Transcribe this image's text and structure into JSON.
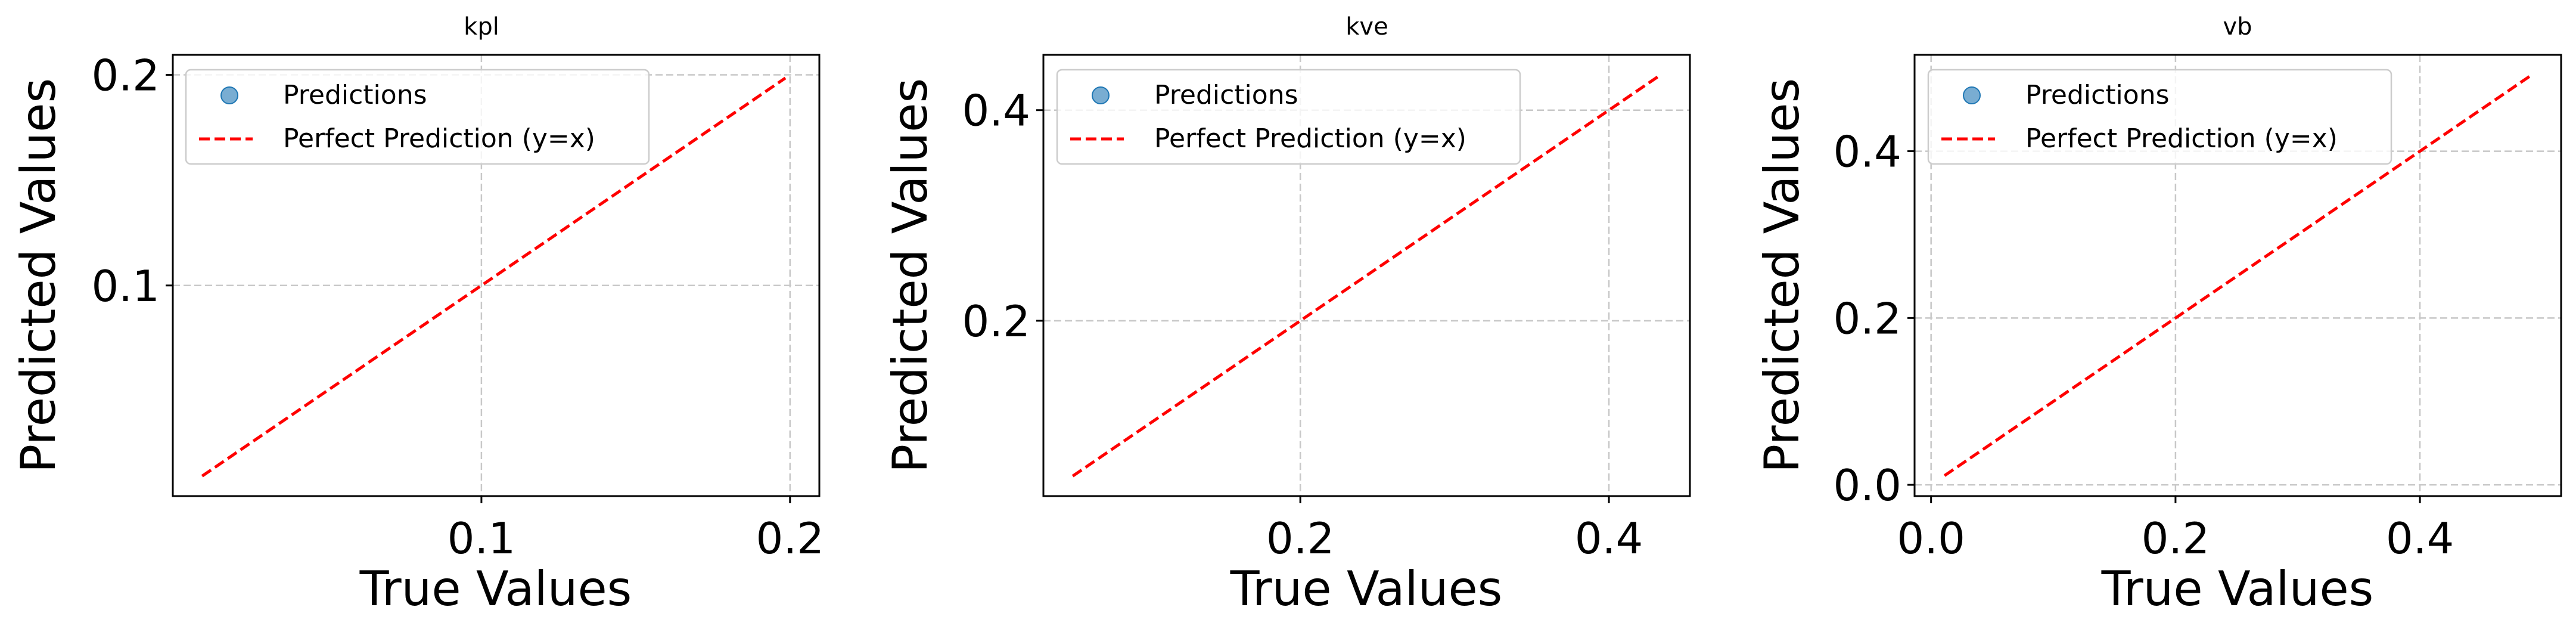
{
  "figure": {
    "background": "#ffffff"
  },
  "chart_data": [
    {
      "type": "scatter",
      "title": "kpl",
      "xlabel": "True Values",
      "ylabel": "Predicted Values",
      "xlim": [
        0.0,
        0.2095
      ],
      "ylim": [
        0.0,
        0.2095
      ],
      "xticks": [
        0.1,
        0.2
      ],
      "xtick_labels": [
        "0.1",
        "0.2"
      ],
      "yticks": [
        0.1,
        0.2
      ],
      "ytick_labels": [
        "0.1",
        "0.2"
      ],
      "grid": true,
      "legend_position": "top-left",
      "series": [
        {
          "name": "Predictions",
          "kind": "scatter",
          "color": "#1f77b4",
          "points": []
        },
        {
          "name": "Perfect Prediction (y=x)",
          "kind": "line",
          "style": "dashed",
          "color": "#ff0000",
          "x": [
            0.0095,
            0.1985
          ],
          "y": [
            0.0095,
            0.1985
          ]
        }
      ]
    },
    {
      "type": "scatter",
      "title": "kve",
      "xlabel": "True Values",
      "ylabel": "Predicted Values",
      "xlim": [
        0.0335,
        0.4525
      ],
      "ylim": [
        0.0335,
        0.4525
      ],
      "xticks": [
        0.2,
        0.4
      ],
      "xtick_labels": [
        "0.2",
        "0.4"
      ],
      "yticks": [
        0.2,
        0.4
      ],
      "ytick_labels": [
        "0.2",
        "0.4"
      ],
      "grid": true,
      "legend_position": "top-left",
      "series": [
        {
          "name": "Predictions",
          "kind": "scatter",
          "color": "#1f77b4",
          "points": []
        },
        {
          "name": "Perfect Prediction (y=x)",
          "kind": "line",
          "style": "dashed",
          "color": "#ff0000",
          "x": [
            0.0525,
            0.4335
          ],
          "y": [
            0.0525,
            0.4335
          ]
        }
      ]
    },
    {
      "type": "scatter",
      "title": "vb",
      "xlabel": "True Values",
      "ylabel": "Predicted Values",
      "xlim": [
        -0.0135,
        0.5155
      ],
      "ylim": [
        -0.0135,
        0.5155
      ],
      "xticks": [
        0.0,
        0.2,
        0.4
      ],
      "xtick_labels": [
        "0.0",
        "0.2",
        "0.4"
      ],
      "yticks": [
        0.0,
        0.2,
        0.4
      ],
      "ytick_labels": [
        "0.0",
        "0.2",
        "0.4"
      ],
      "grid": true,
      "legend_position": "top-left",
      "series": [
        {
          "name": "Predictions",
          "kind": "scatter",
          "color": "#1f77b4",
          "points": []
        },
        {
          "name": "Perfect Prediction (y=x)",
          "kind": "line",
          "style": "dashed",
          "color": "#ff0000",
          "x": [
            0.011,
            0.491
          ],
          "y": [
            0.011,
            0.491
          ]
        }
      ]
    }
  ]
}
